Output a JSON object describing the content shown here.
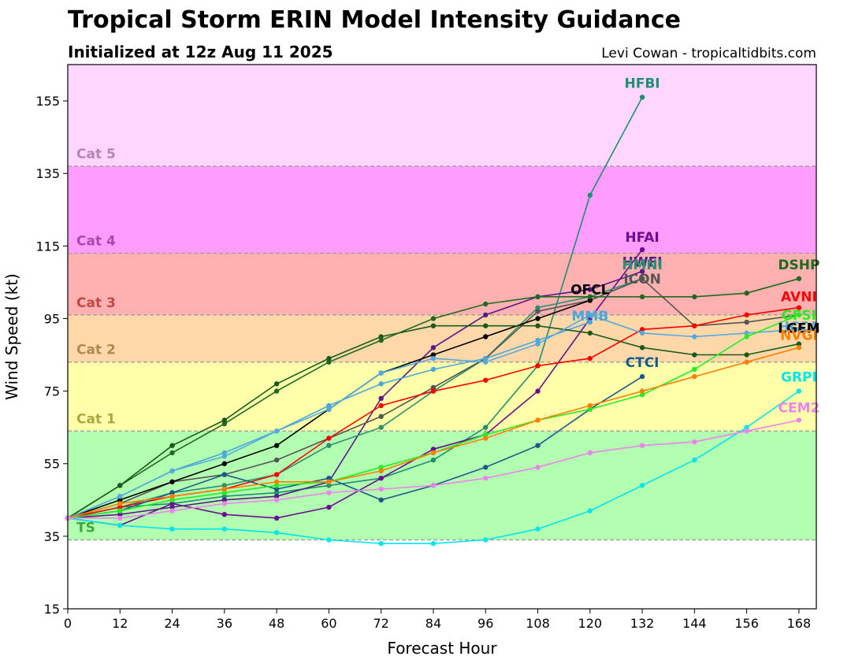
{
  "title": "Tropical Storm ERIN Model Intensity Guidance",
  "subtitle": "Initialized at 12z Aug 11 2025",
  "credit": "Levi Cowan - tropicaltidbits.com",
  "chart_data": {
    "type": "line",
    "xlabel": "Forecast Hour",
    "ylabel": "Wind Speed (kt)",
    "xlim": [
      0,
      172
    ],
    "ylim": [
      15,
      165
    ],
    "xticks": [
      0,
      12,
      24,
      36,
      48,
      60,
      72,
      84,
      96,
      108,
      120,
      132,
      144,
      156,
      168
    ],
    "yticks": [
      15,
      35,
      55,
      75,
      95,
      115,
      135,
      155
    ],
    "grid": false,
    "bands": [
      {
        "label": "TS",
        "from": 34,
        "to": 64,
        "color": "#b2ffb2",
        "label_color": "#3aaa3a"
      },
      {
        "label": "Cat 1",
        "from": 64,
        "to": 83,
        "color": "#ffffaa",
        "label_color": "#aaa93f"
      },
      {
        "label": "Cat 2",
        "from": 83,
        "to": 96,
        "color": "#ffd8aa",
        "label_color": "#b08850"
      },
      {
        "label": "Cat 3",
        "from": 96,
        "to": 113,
        "color": "#ffb0b0",
        "label_color": "#c04848"
      },
      {
        "label": "Cat 4",
        "from": 113,
        "to": 137,
        "color": "#ff9cff",
        "label_color": "#a84aa8"
      },
      {
        "label": "Cat 5",
        "from": 137,
        "to": 165,
        "color": "#ffd6ff",
        "label_color": "#b883b8"
      }
    ],
    "series": [
      {
        "name": "HFBI",
        "color": "#1f8f6f",
        "label_color": "#1f8f6f",
        "x": [
          0,
          12,
          24,
          36,
          48,
          60,
          72,
          84,
          96,
          108,
          120,
          132
        ],
        "y": [
          40,
          43,
          44,
          46,
          47,
          49,
          51,
          56,
          65,
          82,
          129,
          156
        ]
      },
      {
        "name": "HFAI",
        "color": "#6a0e8f",
        "label_color": "#6a0e8f",
        "x": [
          0,
          12,
          24,
          36,
          48,
          60,
          72,
          84,
          96,
          108,
          120,
          132
        ],
        "y": [
          40,
          38,
          44,
          41,
          40,
          43,
          51,
          59,
          63,
          75,
          95,
          114
        ]
      },
      {
        "name": "HWFI",
        "color": "#5b1a8a",
        "label_color": "#5b1a8a",
        "x": [
          0,
          12,
          24,
          36,
          48,
          60,
          72,
          84,
          96,
          108,
          120,
          132
        ],
        "y": [
          40,
          41,
          43,
          45,
          46,
          50,
          73,
          87,
          96,
          101,
          103,
          108
        ]
      },
      {
        "name": "HMNI",
        "color": "#2a9070",
        "label_color": "#2a9070",
        "x": [
          0,
          12,
          24,
          36,
          48,
          60,
          72,
          84,
          96,
          108,
          120,
          132
        ],
        "y": [
          40,
          43,
          47,
          49,
          52,
          60,
          65,
          75,
          84,
          98,
          101,
          106
        ]
      },
      {
        "name": "ICON",
        "color": "#555555",
        "label_color": "#555555",
        "x": [
          0,
          12,
          24,
          36,
          48,
          60,
          72,
          84,
          96,
          108,
          120,
          132,
          144,
          156,
          168
        ],
        "y": [
          40,
          44,
          50,
          52,
          56,
          62,
          68,
          76,
          84,
          97,
          100,
          106,
          93,
          94,
          96
        ]
      },
      {
        "name": "OFCL",
        "color": "#000000",
        "label_color": "#000000",
        "x": [
          0,
          12,
          24,
          36,
          48,
          60,
          72,
          84,
          96,
          108,
          120
        ],
        "y": [
          40,
          45,
          50,
          55,
          60,
          70,
          80,
          85,
          90,
          95,
          100
        ]
      },
      {
        "name": "MMB",
        "color": "#4aa8d8",
        "label_color": "#4aa8d8",
        "x": [
          0,
          12,
          24,
          36,
          48,
          60,
          72,
          84,
          96,
          108,
          120
        ],
        "y": [
          40,
          46,
          53,
          58,
          64,
          71,
          77,
          81,
          84,
          89,
          94
        ]
      },
      {
        "name": "DSHP",
        "color": "#1f6a1f",
        "label_color": "#1f6a1f",
        "x": [
          0,
          12,
          24,
          36,
          48,
          60,
          72,
          84,
          96,
          108,
          120,
          132,
          144,
          156,
          168
        ],
        "y": [
          40,
          49,
          58,
          66,
          75,
          83,
          89,
          95,
          99,
          101,
          101,
          101,
          101,
          102,
          106
        ]
      },
      {
        "name": "LGEM",
        "color": "#1a5a1a",
        "label_color": "#000000",
        "x": [
          0,
          12,
          24,
          36,
          48,
          60,
          72,
          84,
          96,
          108,
          120,
          132,
          144,
          156,
          168
        ],
        "y": [
          40,
          49,
          60,
          67,
          77,
          84,
          90,
          93,
          93,
          93,
          91,
          87,
          85,
          85,
          88
        ]
      },
      {
        "name": "AVNI",
        "color": "#ff0000",
        "label_color": "#ff0000",
        "x": [
          0,
          12,
          24,
          36,
          48,
          60,
          72,
          84,
          96,
          108,
          120,
          132,
          144,
          156,
          168
        ],
        "y": [
          40,
          43,
          46,
          48,
          52,
          62,
          71,
          75,
          78,
          82,
          84,
          92,
          93,
          96,
          98
        ]
      },
      {
        "name": "CTCI",
        "color": "#1a5a8a",
        "label_color": "#1a5a8a",
        "x": [
          0,
          12,
          24,
          36,
          48,
          60,
          72,
          84,
          96,
          108,
          120,
          132
        ],
        "y": [
          40,
          42,
          47,
          52,
          48,
          51,
          45,
          49,
          54,
          60,
          70,
          79
        ]
      },
      {
        "name": "HCCA",
        "color": "#55aadd",
        "label_color": "#55aadd",
        "x": [
          0,
          12,
          24,
          36,
          48,
          60,
          72,
          84,
          96,
          108,
          120,
          132,
          144,
          156,
          168
        ],
        "y": [
          40,
          46,
          53,
          57,
          64,
          70,
          80,
          84,
          83,
          88,
          96,
          91,
          90,
          91,
          92
        ]
      },
      {
        "name": "GFSI",
        "color": "#22ee22",
        "label_color": "#22ee22",
        "x": [
          0,
          12,
          24,
          36,
          48,
          60,
          72,
          84,
          96,
          108,
          120,
          132,
          144,
          156,
          168
        ],
        "y": [
          40,
          42,
          45,
          47,
          49,
          50,
          54,
          58,
          63,
          67,
          70,
          74,
          81,
          90,
          96
        ]
      },
      {
        "name": "NVGI",
        "color": "#ff7f00",
        "label_color": "#ff7f00",
        "x": [
          0,
          12,
          24,
          36,
          48,
          60,
          72,
          84,
          96,
          108,
          120,
          132,
          144,
          156,
          168
        ],
        "y": [
          40,
          44,
          46,
          48,
          50,
          50,
          53,
          58,
          62,
          67,
          71,
          75,
          79,
          83,
          87
        ]
      },
      {
        "name": "GRPI",
        "color": "#00e5ee",
        "label_color": "#00e5ee",
        "x": [
          0,
          12,
          24,
          36,
          48,
          60,
          72,
          84,
          96,
          108,
          120,
          132,
          144,
          156,
          168
        ],
        "y": [
          40,
          38,
          37,
          37,
          36,
          34,
          33,
          33,
          34,
          37,
          42,
          49,
          56,
          65,
          75
        ]
      },
      {
        "name": "CEM2",
        "color": "#ee82ee",
        "label_color": "#ee82ee",
        "x": [
          0,
          12,
          24,
          36,
          48,
          60,
          72,
          84,
          96,
          108,
          120,
          132,
          144,
          156,
          168
        ],
        "y": [
          40,
          40,
          42,
          44,
          45,
          47,
          48,
          49,
          51,
          54,
          58,
          60,
          61,
          64,
          67
        ]
      }
    ],
    "annotations": [
      {
        "text": "HFBI",
        "series": "HFBI",
        "at_x": 132
      },
      {
        "text": "HFAI",
        "series": "HFAI",
        "at_x": 132
      },
      {
        "text": "HWFI",
        "series": "HWFI",
        "at_x": 132
      },
      {
        "text": "HMNI",
        "series": "HMNI",
        "at_x": 132
      },
      {
        "text": "ICON",
        "series": "ICON",
        "at_x": 132
      },
      {
        "text": "OFCL",
        "series": "OFCL",
        "at_x": 120
      },
      {
        "text": "MMB",
        "series": "MMB",
        "at_x": 120
      },
      {
        "text": "CTCI",
        "series": "CTCI",
        "at_x": 132
      },
      {
        "text": "DSHP",
        "series": "DSHP",
        "at_x": 168
      },
      {
        "text": "AVNI",
        "series": "AVNI",
        "at_x": 168
      },
      {
        "text": "GFSI",
        "series": "GFSI",
        "at_x": 168
      },
      {
        "text": "HCCA",
        "series": "HCCA",
        "at_x": 168
      },
      {
        "text": "LGEM",
        "series": "LGEM",
        "at_x": 168
      },
      {
        "text": "NVGI",
        "series": "NVGI",
        "at_x": 168
      },
      {
        "text": "GRPI",
        "series": "GRPI",
        "at_x": 168
      },
      {
        "text": "CEM2",
        "series": "CEM2",
        "at_x": 168
      }
    ]
  }
}
